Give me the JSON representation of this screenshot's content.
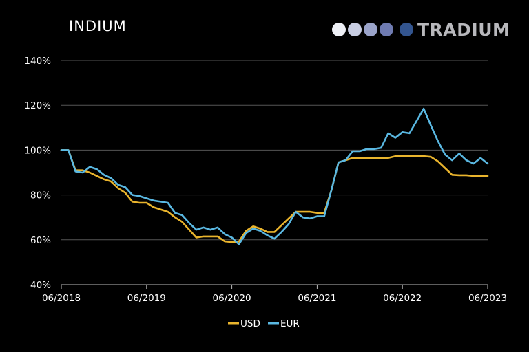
{
  "title": "INDIUM",
  "logo": {
    "text": "TRADIUM",
    "dot_colors": [
      "#eef0f6",
      "#c8cde2",
      "#9aa3c9",
      "#6f7bb1",
      "#33558f"
    ]
  },
  "chart_data": {
    "type": "line",
    "title": "INDIUM",
    "xlabel": "",
    "ylabel": "",
    "x_ticks": [
      "06/2018",
      "06/2019",
      "06/2020",
      "06/2021",
      "06/2022",
      "06/2023"
    ],
    "y_ticks": [
      "40%",
      "60%",
      "80%",
      "100%",
      "120%",
      "140%"
    ],
    "ylim": [
      40,
      140
    ],
    "x_range": [
      "06/2018",
      "06/2023"
    ],
    "grid": "horizontal",
    "legend": "bottom-center",
    "x": [
      "06/2018",
      "07/2018",
      "08/2018",
      "09/2018",
      "10/2018",
      "11/2018",
      "12/2018",
      "01/2019",
      "02/2019",
      "03/2019",
      "04/2019",
      "05/2019",
      "06/2019",
      "07/2019",
      "08/2019",
      "09/2019",
      "10/2019",
      "11/2019",
      "12/2019",
      "01/2020",
      "02/2020",
      "03/2020",
      "04/2020",
      "05/2020",
      "06/2020",
      "07/2020",
      "08/2020",
      "09/2020",
      "10/2020",
      "11/2020",
      "12/2020",
      "01/2021",
      "02/2021",
      "03/2021",
      "04/2021",
      "05/2021",
      "06/2021",
      "07/2021",
      "08/2021",
      "09/2021",
      "10/2021",
      "11/2021",
      "12/2021",
      "01/2022",
      "02/2022",
      "03/2022",
      "04/2022",
      "05/2022",
      "06/2022",
      "07/2022",
      "08/2022",
      "09/2022",
      "10/2022",
      "11/2022",
      "12/2022",
      "01/2023",
      "02/2023",
      "03/2023",
      "04/2023",
      "05/2023",
      "06/2023"
    ],
    "series": [
      {
        "name": "USD",
        "color": "#e9b42d",
        "values": [
          100,
          100,
          91,
          91,
          90,
          88.5,
          87,
          86,
          83,
          81,
          77,
          76.5,
          76.5,
          74.5,
          73.5,
          72.5,
          70,
          68,
          64.5,
          61,
          61.5,
          61.5,
          61.5,
          59.3,
          59,
          59.2,
          64,
          66,
          65,
          63.5,
          63.5,
          66.5,
          69.5,
          72.5,
          72.5,
          72.5,
          72,
          72,
          82,
          94.5,
          95.5,
          96.5,
          96.5,
          96.5,
          96.5,
          96.5,
          96.5,
          97.3,
          97.3,
          97.3,
          97.3,
          97.3,
          97,
          95,
          92,
          89,
          88.8,
          88.8,
          88.5,
          88.5,
          88.5
        ]
      },
      {
        "name": "EUR",
        "color": "#5ab8e2",
        "values": [
          100,
          100,
          90.5,
          90,
          92.5,
          91.5,
          89,
          87.5,
          84.5,
          83.5,
          80,
          79.5,
          78.5,
          77.5,
          77,
          76.5,
          72,
          71,
          67.5,
          64.5,
          65.5,
          64.5,
          65.5,
          62.5,
          61,
          58,
          63,
          65,
          64,
          62,
          60.5,
          63.5,
          67,
          72.5,
          70,
          69.5,
          70.5,
          70.5,
          82,
          94.5,
          95.5,
          99.5,
          99.5,
          100.5,
          100.5,
          101,
          107.5,
          105.5,
          108,
          107.5,
          113,
          118.5,
          111,
          104,
          98,
          95.5,
          98.5,
          95.5,
          94,
          96.5,
          94
        ]
      }
    ]
  }
}
